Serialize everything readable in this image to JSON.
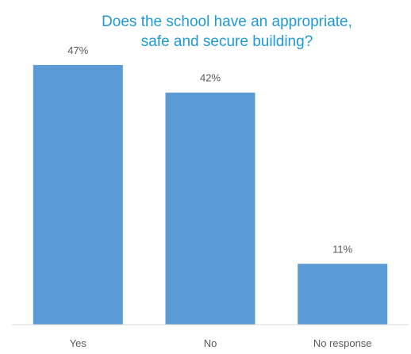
{
  "chart_data": {
    "type": "bar",
    "title_lines": [
      "Does the school have an appropriate,",
      "safe and secure building?"
    ],
    "categories": [
      "Yes",
      "No",
      "No response"
    ],
    "values": [
      47,
      42,
      11
    ],
    "data_labels": [
      "47%",
      "42%",
      "11%"
    ],
    "xlabel": "",
    "ylabel": "",
    "ylim": [
      0,
      50
    ],
    "grid": false,
    "legend": "none",
    "bar_color": "#5b9bd5",
    "title_color": "#1f9ad6",
    "label_color": "#595959",
    "axis_color": "#d9d9d9"
  }
}
